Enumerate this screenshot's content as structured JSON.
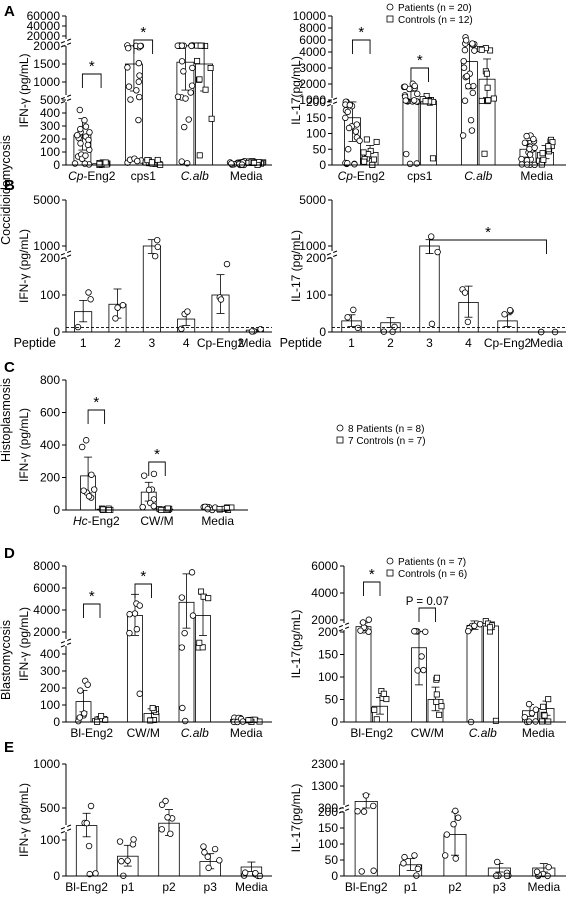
{
  "figure": {
    "panel_letters": [
      "A",
      "B",
      "C",
      "D",
      "E"
    ],
    "disease_labels": [
      "Coccidioidomycosis",
      "Histoplasmosis",
      "Blastomycosis"
    ]
  },
  "chart_data": [
    {
      "id": "A-left",
      "type": "bar",
      "panel": "A",
      "ylabel": "IFN-γ (pg/mL)",
      "categories": [
        "Cp-Eng2",
        "cps1",
        "C.alb",
        "Media"
      ],
      "category_italic_part": [
        "Cp",
        "",
        "C.alb",
        ""
      ],
      "yticks": [
        "0",
        "100",
        "200",
        "300",
        "400",
        "500",
        "1000",
        "1500",
        "2000",
        "20000",
        "40000",
        "60000"
      ],
      "series": [
        {
          "name": "Patients (n = 20)",
          "marker": "circle",
          "values": [
            230,
            1500,
            1550,
            15
          ]
        },
        {
          "name": "Controls (n = 12)",
          "marker": "square",
          "values": [
            10,
            20,
            1500,
            15
          ]
        }
      ],
      "legend_position": "top-right",
      "significance": [
        {
          "between": "Cp-Eng2",
          "label": "*"
        },
        {
          "between": "cps1",
          "label": "*"
        }
      ]
    },
    {
      "id": "A-right",
      "type": "bar",
      "panel": "A",
      "ylabel": "IL-17(pg/mL)",
      "categories": [
        "Cp-Eng2",
        "cps1",
        "C.alb",
        "Media"
      ],
      "category_italic_part": [
        "Cp",
        "",
        "C.alb",
        ""
      ],
      "yticks": [
        "0",
        "50",
        "100",
        "150",
        "200",
        "1000",
        "2000",
        "3000",
        "4000",
        "6000",
        "8000",
        "10000"
      ],
      "series": [
        {
          "name": "Patients",
          "marker": "circle",
          "values": [
            150,
            1000,
            3400,
            50
          ]
        },
        {
          "name": "Controls",
          "marker": "square",
          "values": [
            40,
            650,
            2300,
            40
          ]
        }
      ],
      "significance": [
        {
          "between": "Cp-Eng2",
          "label": "*"
        },
        {
          "between": "cps1",
          "label": "*"
        }
      ]
    },
    {
      "id": "B-left",
      "type": "bar",
      "panel": "B",
      "ylabel": "IFN-γ (pg/mL)",
      "xtitle": "Peptide",
      "categories": [
        "1",
        "2",
        "3",
        "4",
        "Cp-Eng2",
        "Media"
      ],
      "yticks": [
        "0",
        "100",
        "200",
        "1000",
        "5000"
      ],
      "values": [
        55,
        75,
        1000,
        35,
        100,
        5
      ]
    },
    {
      "id": "B-right",
      "type": "bar",
      "panel": "B",
      "ylabel": "IL-17 (pg/mL)",
      "xtitle": "Peptide",
      "categories": [
        "1",
        "2",
        "3",
        "4",
        "Cp-Eng2",
        "Media"
      ],
      "yticks": [
        "0",
        "100",
        "200",
        "1000",
        "5000"
      ],
      "values": [
        30,
        25,
        1000,
        80,
        30,
        0
      ],
      "significance": [
        {
          "from": "3",
          "to": "Media",
          "label": "*"
        }
      ]
    },
    {
      "id": "C",
      "type": "bar",
      "panel": "C",
      "ylabel": "IFN-γ (pg/mL)",
      "categories": [
        "Hc-Eng2",
        "CW/M",
        "Media"
      ],
      "category_italic_part": [
        "Hc",
        "",
        ""
      ],
      "yticks": [
        "0",
        "200",
        "400",
        "600",
        "800"
      ],
      "ylim": [
        0,
        800
      ],
      "series": [
        {
          "name": "8 Patients (n = 8)",
          "marker": "circle",
          "values": [
            210,
            110,
            10
          ]
        },
        {
          "name": "7 Controls (n = 7)",
          "marker": "square",
          "values": [
            5,
            5,
            10
          ]
        }
      ],
      "legend_position": "right",
      "significance": [
        {
          "between": "Hc-Eng2",
          "label": "*"
        },
        {
          "between": "CW/M",
          "label": "*"
        }
      ]
    },
    {
      "id": "D-left",
      "type": "bar",
      "panel": "D",
      "ylabel": "IFN-γ (pg/mL)",
      "categories": [
        "Bl-Eng2",
        "CW/M",
        "C.alb",
        "Media"
      ],
      "category_italic_part": [
        "",
        "",
        "C.alb",
        ""
      ],
      "yticks": [
        "0",
        "100",
        "200",
        "300",
        "400",
        "2000",
        "4000",
        "6000",
        "8000"
      ],
      "series": [
        {
          "name": "Patients (n = 7)",
          "marker": "circle",
          "values": [
            120,
            3500,
            4700,
            15
          ]
        },
        {
          "name": "Controls (n = 6)",
          "marker": "square",
          "values": [
            20,
            50,
            3500,
            15
          ]
        }
      ],
      "legend_position": "top-right",
      "significance": [
        {
          "between": "Bl-Eng2",
          "label": "*"
        },
        {
          "between": "CW/M",
          "label": "*"
        }
      ]
    },
    {
      "id": "D-right",
      "type": "bar",
      "panel": "D",
      "ylabel": "IL-17(pg/mL)",
      "categories": [
        "Bl-Eng2",
        "CW/M",
        "C.alb",
        "Media"
      ],
      "category_italic_part": [
        "",
        "",
        "C.alb",
        ""
      ],
      "yticks": [
        "0",
        "50",
        "100",
        "150",
        "200",
        "2000",
        "4000",
        "6000"
      ],
      "series": [
        {
          "name": "Patients",
          "marker": "circle",
          "values": [
            1000,
            165,
            1200,
            25
          ]
        },
        {
          "name": "Controls",
          "marker": "square",
          "values": [
            35,
            50,
            1100,
            30
          ]
        }
      ],
      "significance": [
        {
          "between": "Bl-Eng2",
          "label": "*"
        },
        {
          "between": "CW/M",
          "label": "P = 0.07"
        }
      ]
    },
    {
      "id": "E-left",
      "type": "bar",
      "panel": "E",
      "ylabel": "IFN-γ (pg/mL)",
      "categories": [
        "Bl-Eng2",
        "p1",
        "p2",
        "p3",
        "Media"
      ],
      "yticks": [
        "0",
        "100",
        "500",
        "1000"
      ],
      "values": [
        280,
        55,
        310,
        40,
        25
      ]
    },
    {
      "id": "E-right",
      "type": "bar",
      "panel": "E",
      "ylabel": "IL-17(pg/mL)",
      "categories": [
        "Bl-Eng2",
        "p1",
        "p2",
        "p3",
        "Media"
      ],
      "yticks": [
        "0",
        "50",
        "100",
        "150",
        "200",
        "300",
        "1300",
        "2300"
      ],
      "values": [
        600,
        35,
        130,
        25,
        25
      ]
    }
  ]
}
